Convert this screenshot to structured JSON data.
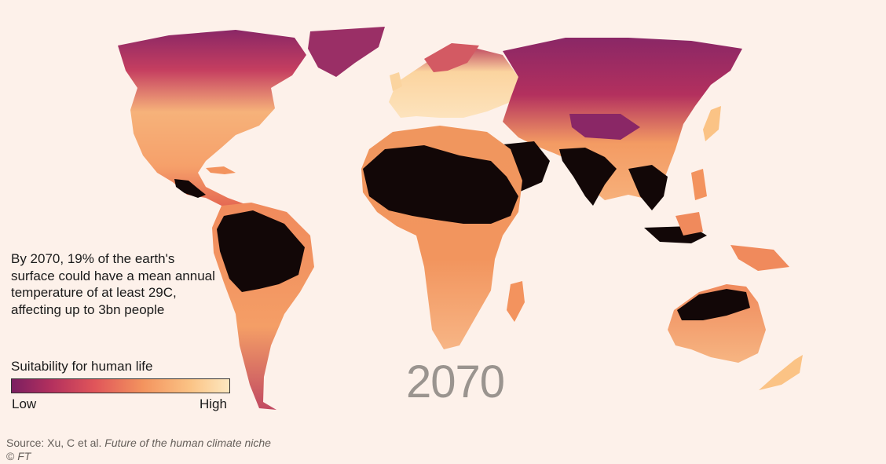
{
  "annotation": "By 2070, 19% of the earth's surface could have a mean annual temperature of at least 29C, affecting up to 3bn people",
  "legend": {
    "title": "Suitability for human life",
    "low_label": "Low",
    "high_label": "High",
    "colors": [
      "#7b1f61",
      "#b3305e",
      "#e0555a",
      "#f3935e",
      "#fbc385",
      "#fde8c0"
    ]
  },
  "year_label": "2070",
  "source": {
    "prefix": "Source: Xu, C et al.",
    "title": "Future of the human climate niche"
  },
  "copyright": {
    "symbol": "©",
    "brand": "FT"
  },
  "colors": {
    "background": "#fdf1ea",
    "uninhabitable": "#120707",
    "low": "#8a2766",
    "mid": "#f0825a",
    "high": "#fde3bd"
  }
}
